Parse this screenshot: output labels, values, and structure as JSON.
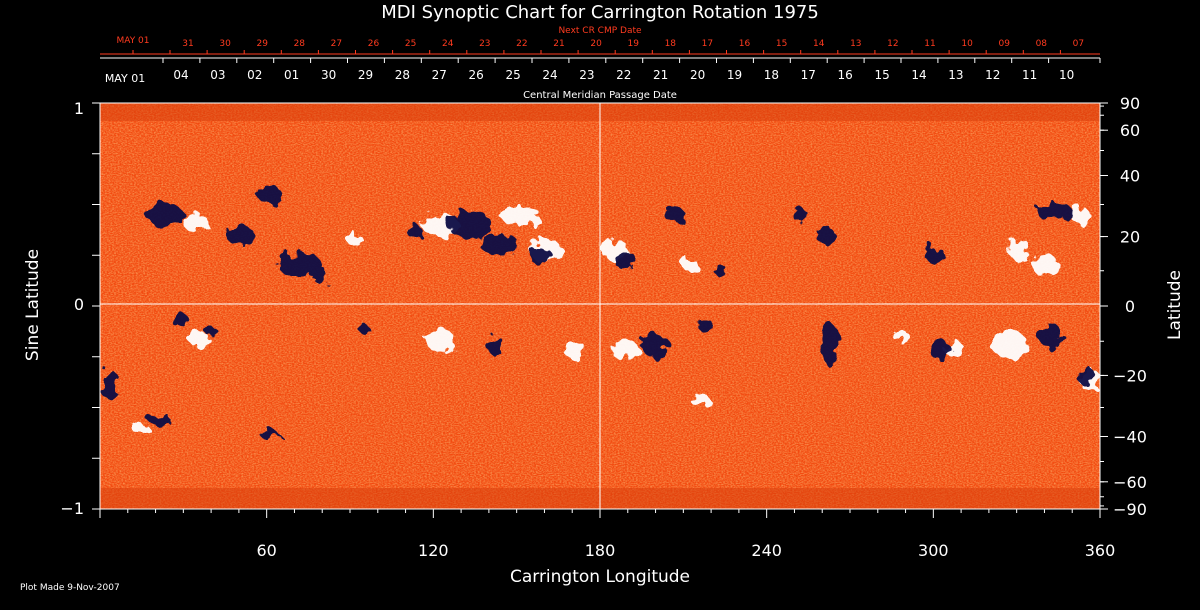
{
  "title": "MDI Synoptic Chart for Carrington Rotation 1975",
  "top_scale": {
    "label": "Next CR CMP Date",
    "start_label": "MAY 01",
    "dates": [
      "31",
      "30",
      "29",
      "28",
      "27",
      "26",
      "25",
      "24",
      "23",
      "22",
      "21",
      "20",
      "19",
      "18",
      "17",
      "16",
      "15",
      "14",
      "13",
      "12",
      "11",
      "10",
      "09",
      "08",
      "07"
    ]
  },
  "cmp_scale": {
    "label": "Central Meridian Passage Date",
    "start_label": "MAY 01",
    "dates": [
      "04",
      "03",
      "02",
      "01",
      "30",
      "29",
      "28",
      "27",
      "26",
      "25",
      "24",
      "23",
      "22",
      "21",
      "20",
      "19",
      "18",
      "17",
      "16",
      "15",
      "14",
      "13",
      "12",
      "11",
      "10"
    ]
  },
  "left_axis": {
    "label": "Sine Latitude",
    "ticks": [
      "1",
      "0",
      "−1"
    ]
  },
  "right_axis": {
    "label": "Latitude",
    "ticks": [
      "90",
      "60",
      "40",
      "20",
      "0",
      "−20",
      "−40",
      "−60",
      "−90"
    ]
  },
  "bottom_axis": {
    "label": "Carrington Longitude",
    "ticks": [
      "60",
      "120",
      "180",
      "240",
      "300",
      "360"
    ]
  },
  "footer": "Plot Made  9-Nov-2007",
  "colors": {
    "background": "#000000",
    "map_base": "#ff4b12",
    "positive_flux": "#ffffff",
    "negative_flux": "#0b0b45",
    "top_scale": "#ff3b1f",
    "text": "#ffffff"
  }
}
